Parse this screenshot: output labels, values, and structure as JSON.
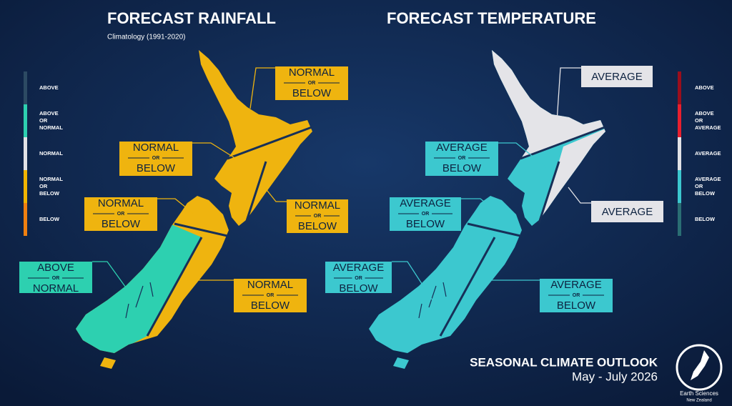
{
  "rainfall": {
    "title": "FORECAST RAINFALL",
    "subtitle": "Climatology (1991-2020)",
    "land_colors": [
      "#efb40f",
      "#2dd0b0"
    ],
    "legend": [
      {
        "lines": [
          "ABOVE"
        ],
        "color": "#2c4a63"
      },
      {
        "lines": [
          "ABOVE",
          "OR",
          "NORMAL"
        ],
        "color": "#2dd0b0"
      },
      {
        "lines": [
          "NORMAL"
        ],
        "color": "#e2e2e6"
      },
      {
        "lines": [
          "NORMAL",
          "OR",
          "BELOW"
        ],
        "color": "#f0b400"
      },
      {
        "lines": [
          "BELOW"
        ],
        "color": "#f08010"
      }
    ],
    "labels": [
      {
        "lines": [
          "NORMAL",
          "OR",
          "BELOW"
        ],
        "color": "#efb40f"
      },
      {
        "lines": [
          "NORMAL",
          "OR",
          "BELOW"
        ],
        "color": "#efb40f"
      },
      {
        "lines": [
          "NORMAL",
          "OR",
          "BELOW"
        ],
        "color": "#efb40f"
      },
      {
        "lines": [
          "NORMAL",
          "OR",
          "BELOW"
        ],
        "color": "#efb40f"
      },
      {
        "lines": [
          "ABOVE",
          "OR",
          "NORMAL"
        ],
        "color": "#2dd0b0"
      },
      {
        "lines": [
          "NORMAL",
          "OR",
          "BELOW"
        ],
        "color": "#efb40f"
      }
    ]
  },
  "temperature": {
    "title": "FORECAST TEMPERATURE",
    "land_colors": [
      "#3cc8cf",
      "#e4e4e8"
    ],
    "legend": [
      {
        "lines": [
          "ABOVE"
        ],
        "color": "#9a0e1c"
      },
      {
        "lines": [
          "ABOVE",
          "OR",
          "AVERAGE"
        ],
        "color": "#e81f2e"
      },
      {
        "lines": [
          "AVERAGE"
        ],
        "color": "#e2e2e6"
      },
      {
        "lines": [
          "AVERAGE",
          "OR",
          "BELOW"
        ],
        "color": "#3cc8cf"
      },
      {
        "lines": [
          "BELOW"
        ],
        "color": "#2a6e73"
      }
    ],
    "labels": [
      {
        "lines": [
          "AVERAGE"
        ],
        "color": "#e4e4e8"
      },
      {
        "lines": [
          "AVERAGE",
          "OR",
          "BELOW"
        ],
        "color": "#3cc8cf"
      },
      {
        "lines": [
          "AVERAGE",
          "OR",
          "BELOW"
        ],
        "color": "#3cc8cf"
      },
      {
        "lines": [
          "AVERAGE"
        ],
        "color": "#e4e4e8"
      },
      {
        "lines": [
          "AVERAGE",
          "OR",
          "BELOW"
        ],
        "color": "#3cc8cf"
      },
      {
        "lines": [
          "AVERAGE",
          "OR",
          "BELOW"
        ],
        "color": "#3cc8cf"
      }
    ]
  },
  "footer": {
    "title": "SEASONAL CLIMATE OUTLOOK",
    "period": "May - July 2026"
  },
  "logo": {
    "name": "Earth Sciences",
    "country": "New Zealand"
  }
}
